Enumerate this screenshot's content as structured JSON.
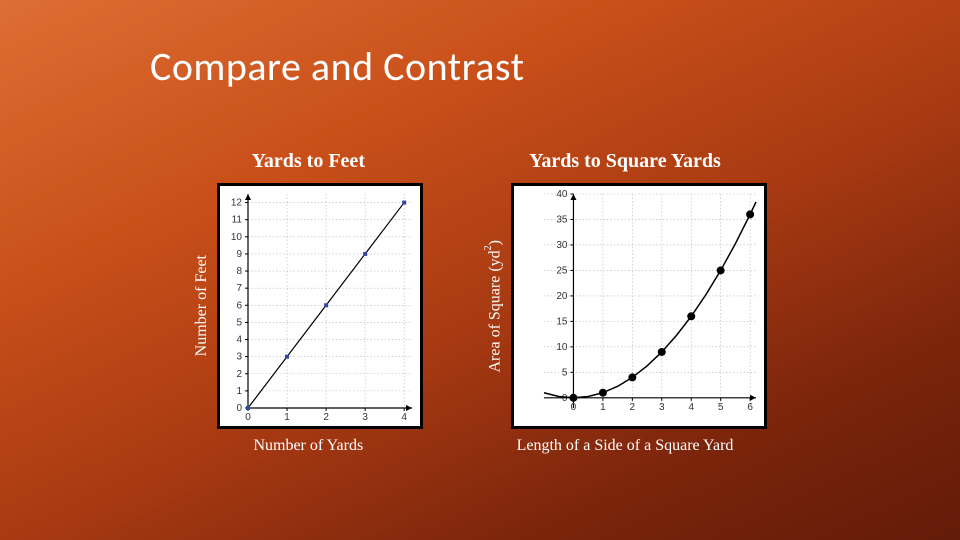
{
  "title": "Compare and Contrast",
  "left_chart": {
    "type": "scatter_line",
    "title": "Yards to Feet",
    "ylabel": "Number of Feet",
    "xlabel": "Number of Yards",
    "x_range": [
      0,
      4.2
    ],
    "y_range": [
      0,
      12.5
    ],
    "x_ticks": [
      0,
      1,
      2,
      3,
      4
    ],
    "y_ticks": [
      0,
      1,
      2,
      3,
      4,
      5,
      6,
      7,
      8,
      9,
      10,
      11,
      12
    ],
    "grid_color": "#b8b8b8",
    "axis_color": "#000000",
    "bg_color": "#ffffff",
    "tick_font_size": 10,
    "line_color": "#000000",
    "line_width": 1.2,
    "marker_color": "#38459e",
    "marker_size": 4,
    "points": [
      {
        "x": 0,
        "y": 0
      },
      {
        "x": 1,
        "y": 3
      },
      {
        "x": 2,
        "y": 6
      },
      {
        "x": 3,
        "y": 9
      },
      {
        "x": 4,
        "y": 12
      }
    ]
  },
  "right_chart": {
    "type": "scatter_curve",
    "title": "Yards to Square Yards",
    "ylabel_html": "Area of Square (yd²)",
    "xlabel": "Length of a Side of a Square Yard",
    "x_range": [
      -1,
      6.2
    ],
    "y_range": [
      -2,
      40
    ],
    "x_ticks": [
      0,
      1,
      2,
      3,
      4,
      5,
      6
    ],
    "y_ticks": [
      0,
      5,
      10,
      15,
      20,
      25,
      30,
      35,
      40
    ],
    "grid_color": "#b8b8b8",
    "axis_color": "#000000",
    "bg_color": "#ffffff",
    "tick_font_size": 10,
    "curve_color": "#000000",
    "curve_width": 1.5,
    "marker_color": "#000000",
    "marker_size": 4,
    "points": [
      {
        "x": 0,
        "y": 0
      },
      {
        "x": 1,
        "y": 1
      },
      {
        "x": 2,
        "y": 4
      },
      {
        "x": 3,
        "y": 9
      },
      {
        "x": 4,
        "y": 16
      },
      {
        "x": 5,
        "y": 25
      },
      {
        "x": 6,
        "y": 36
      }
    ],
    "curve_samples": [
      {
        "x": -1,
        "y": 1
      },
      {
        "x": -0.5,
        "y": 0.25
      },
      {
        "x": 0,
        "y": 0
      },
      {
        "x": 0.5,
        "y": 0.25
      },
      {
        "x": 1,
        "y": 1
      },
      {
        "x": 1.5,
        "y": 2.25
      },
      {
        "x": 2,
        "y": 4
      },
      {
        "x": 2.5,
        "y": 6.25
      },
      {
        "x": 3,
        "y": 9
      },
      {
        "x": 3.5,
        "y": 12.25
      },
      {
        "x": 4,
        "y": 16
      },
      {
        "x": 4.5,
        "y": 20.25
      },
      {
        "x": 5,
        "y": 25
      },
      {
        "x": 5.5,
        "y": 30.25
      },
      {
        "x": 6,
        "y": 36
      },
      {
        "x": 6.2,
        "y": 38.44
      }
    ]
  }
}
